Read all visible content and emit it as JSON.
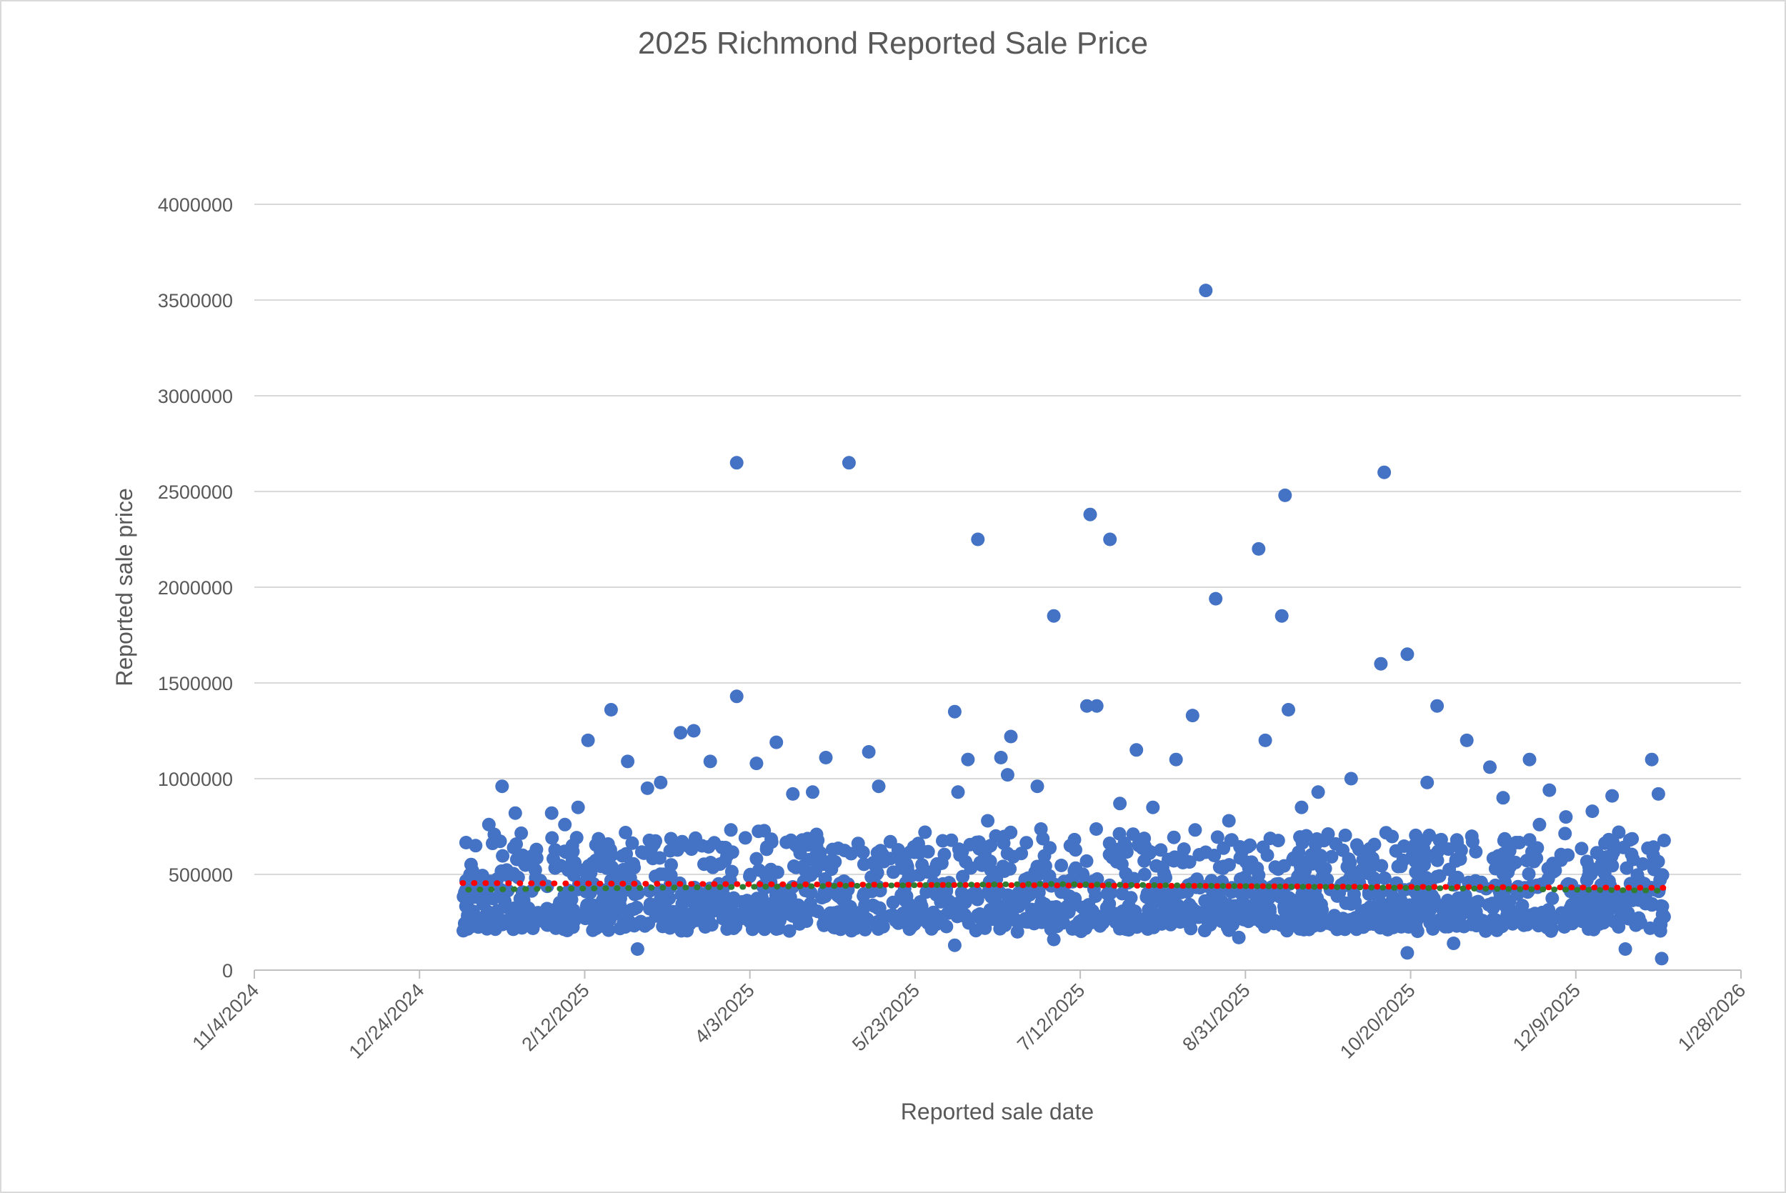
{
  "chart_data": {
    "type": "scatter",
    "title": "2025 Richmond Reported Sale Price",
    "xlabel": "Reported sale date",
    "ylabel": "Reported sale price",
    "xlim": [
      "11/4/2024",
      "1/28/2026"
    ],
    "ylim": [
      0,
      4000000
    ],
    "x_ticks": [
      "11/4/2024",
      "12/24/2024",
      "2/12/2025",
      "4/3/2025",
      "5/23/2025",
      "7/12/2025",
      "8/31/2025",
      "10/20/2025",
      "12/9/2025",
      "1/28/2026"
    ],
    "y_ticks": [
      "0",
      "500000",
      "1000000",
      "1500000",
      "2000000",
      "2500000",
      "3000000",
      "3500000",
      "4000000"
    ],
    "grid": "horizontal",
    "legend": "none",
    "colors": {
      "points": "#4472c4",
      "trend_red": "#ff0000",
      "trend_green": "#2e7d32",
      "gridline": "#d9d9d9",
      "axis": "#bfbfbf",
      "text": "#595959"
    },
    "series": [
      {
        "marker": "circle",
        "color": "#4472c4",
        "x": [
          "2025-03-30",
          "2025-05-03",
          "2025-06-11",
          "2025-07-15",
          "2025-07-21",
          "2025-08-19",
          "2025-08-22",
          "2025-09-04",
          "2025-09-12",
          "2025-09-11",
          "2025-10-12",
          "2025-10-11",
          "2025-10-19",
          "2025-07-04",
          "2025-07-14",
          "2025-07-17",
          "2025-06-04",
          "2025-06-21",
          "2025-02-20",
          "2025-02-13",
          "2025-03-17",
          "2025-03-13",
          "2025-03-30",
          "2025-04-11",
          "2025-04-26",
          "2025-05-09",
          "2025-06-08",
          "2025-06-18",
          "2025-06-20",
          "2025-07-29",
          "2025-08-15",
          "2025-09-06",
          "2025-09-13",
          "2025-10-28",
          "2025-11-06",
          "2025-11-13",
          "2025-11-25",
          "2025-12-01",
          "2025-12-20",
          "2026-01-01",
          "2025-01-10",
          "2025-01-14",
          "2025-01-18",
          "2025-01-22",
          "2025-02-02",
          "2025-02-06",
          "2025-02-10",
          "2025-02-25",
          "2025-03-03",
          "2025-03-07",
          "2025-03-22",
          "2025-04-05",
          "2025-04-16",
          "2025-04-22",
          "2025-05-12",
          "2025-05-26",
          "2025-06-05",
          "2025-06-14",
          "2025-06-29",
          "2025-07-09",
          "2025-07-24",
          "2025-08-03",
          "2025-08-10",
          "2025-08-26",
          "2025-09-17",
          "2025-09-22",
          "2025-10-02",
          "2025-10-25",
          "2025-11-03",
          "2025-11-17",
          "2025-11-28",
          "2025-12-06",
          "2025-12-14",
          "2025-12-22",
          "2026-01-03",
          "2025-02-28",
          "2025-06-04",
          "2025-06-23",
          "2025-07-04",
          "2025-08-29",
          "2025-10-19",
          "2025-11-02",
          "2025-12-24",
          "2026-01-04"
        ],
        "y": [
          2650000,
          2650000,
          2250000,
          2380000,
          2250000,
          3550000,
          1940000,
          2200000,
          2480000,
          1850000,
          2600000,
          1600000,
          1650000,
          1850000,
          1380000,
          1380000,
          1350000,
          1220000,
          1360000,
          1200000,
          1250000,
          1240000,
          1430000,
          1190000,
          1110000,
          1140000,
          1100000,
          1110000,
          1020000,
          1150000,
          1330000,
          1200000,
          1360000,
          1380000,
          1200000,
          1060000,
          1100000,
          940000,
          910000,
          1100000,
          650000,
          760000,
          960000,
          820000,
          820000,
          760000,
          850000,
          1090000,
          950000,
          980000,
          1090000,
          1080000,
          920000,
          930000,
          960000,
          720000,
          930000,
          780000,
          960000,
          650000,
          870000,
          850000,
          1100000,
          780000,
          850000,
          930000,
          1000000,
          980000,
          680000,
          900000,
          760000,
          800000,
          830000,
          720000,
          920000,
          110000,
          130000,
          200000,
          160000,
          170000,
          90000,
          140000,
          110000,
          60000
        ]
      }
    ],
    "dense_band": {
      "x_start": "2025-01-06",
      "x_end": "2026-01-05",
      "y_low": 200000,
      "y_high": 750000
    },
    "trendlines": [
      {
        "color": "#ff0000",
        "style": "dotted",
        "x": [
          "2025-01-06",
          "2026-01-05"
        ],
        "y": [
          455000,
          430000
        ]
      },
      {
        "color": "#2e7d32",
        "style": "dotted",
        "x": [
          "2025-01-06",
          "2025-07-01",
          "2026-01-05"
        ],
        "y": [
          420000,
          450000,
          415000
        ]
      }
    ]
  }
}
